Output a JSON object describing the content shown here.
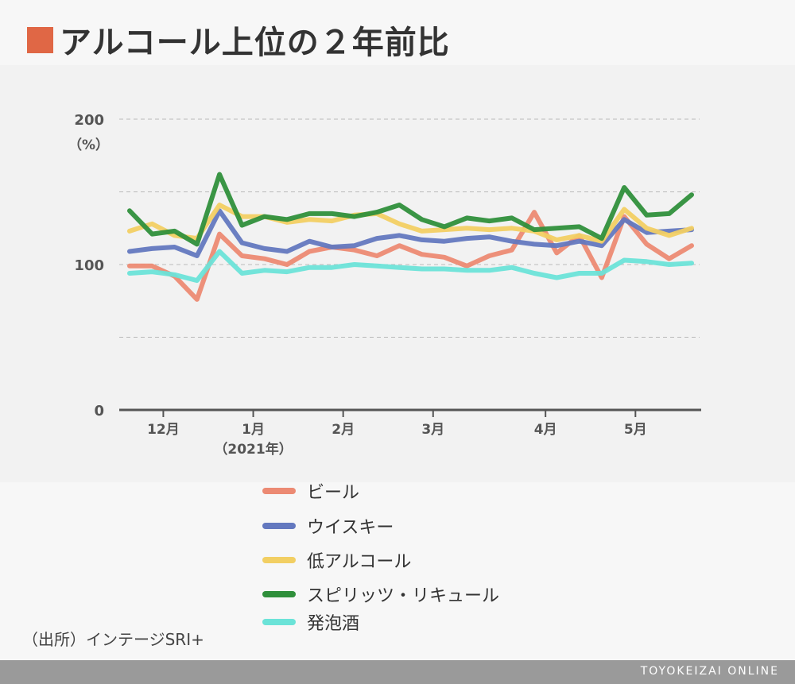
{
  "header": {
    "title": "アルコール上位の２年前比",
    "accent_color": "#e06745"
  },
  "chart_data": {
    "type": "line",
    "ylabel": "（%）",
    "ylim": [
      0,
      200
    ],
    "y_ticks": [
      {
        "value": 0,
        "label": "0"
      },
      {
        "value": 50,
        "label": ""
      },
      {
        "value": 100,
        "label": "100"
      },
      {
        "value": 150,
        "label": ""
      },
      {
        "value": 200,
        "label": "200"
      }
    ],
    "x_ticks": [
      {
        "index": 1.5,
        "label": "12月",
        "sub": ""
      },
      {
        "index": 5.5,
        "label": "1月",
        "sub": "（2021年）"
      },
      {
        "index": 9.5,
        "label": "2月",
        "sub": ""
      },
      {
        "index": 13.5,
        "label": "3月",
        "sub": ""
      },
      {
        "index": 18.5,
        "label": "4月",
        "sub": ""
      },
      {
        "index": 22.5,
        "label": "5月",
        "sub": ""
      }
    ],
    "series": [
      {
        "name": "ビール",
        "color": "#ec8a73",
        "values": [
          99,
          99,
          92,
          76,
          121,
          106,
          104,
          100,
          109,
          112,
          110,
          106,
          113,
          107,
          105,
          99,
          106,
          110,
          136,
          108,
          120,
          91,
          133,
          114,
          104,
          113
        ]
      },
      {
        "name": "ウイスキー",
        "color": "#6378bf",
        "values": [
          109,
          111,
          112,
          106,
          137,
          115,
          111,
          109,
          116,
          112,
          113,
          118,
          120,
          117,
          116,
          118,
          119,
          116,
          114,
          113,
          116,
          113,
          131,
          122,
          123,
          124
        ]
      },
      {
        "name": "低アルコール",
        "color": "#f2cf63",
        "values": [
          123,
          128,
          120,
          118,
          141,
          133,
          133,
          129,
          131,
          130,
          134,
          135,
          128,
          123,
          124,
          125,
          124,
          125,
          123,
          117,
          120,
          116,
          138,
          125,
          120,
          125
        ]
      },
      {
        "name": "スピリッツ・リキュール",
        "color": "#2f8f3b",
        "values": [
          137,
          121,
          123,
          114,
          162,
          127,
          133,
          131,
          135,
          135,
          133,
          136,
          141,
          131,
          126,
          132,
          130,
          132,
          124,
          125,
          126,
          118,
          153,
          134,
          135,
          148
        ]
      },
      {
        "name": "発泡酒",
        "color": "#6be3d8",
        "values": [
          94,
          95,
          93,
          89,
          109,
          94,
          96,
          95,
          98,
          98,
          100,
          99,
          98,
          97,
          97,
          96,
          96,
          98,
          94,
          91,
          94,
          94,
          103,
          102,
          100,
          101
        ]
      }
    ],
    "grid": true,
    "legend": "bottom-center"
  },
  "source": "（出所）インテージSRI+",
  "footer": {
    "brand": "TOYOKEIZAI ONLINE"
  }
}
